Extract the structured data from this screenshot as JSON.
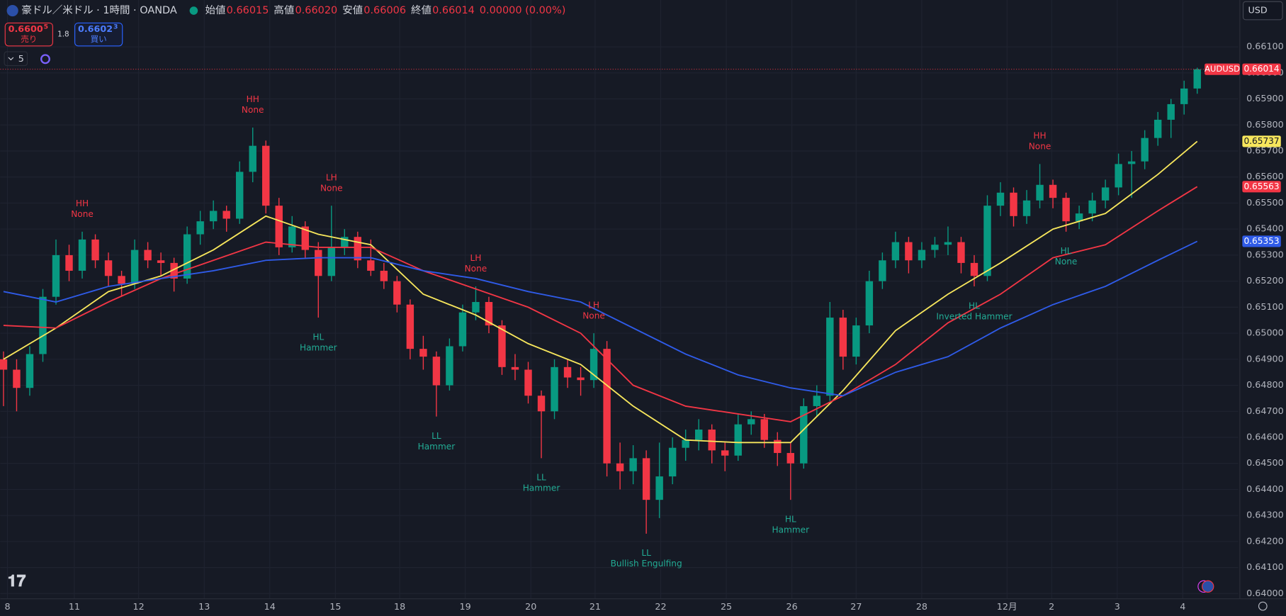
{
  "header": {
    "title": "豪ドル／米ドル · 1時間 · OANDA",
    "ohlc": [
      {
        "name": "始値",
        "text": "0.66015"
      },
      {
        "name": "高値",
        "text": "0.66020"
      },
      {
        "name": "安値",
        "text": "0.66006"
      },
      {
        "name": "終値",
        "text": "0.66014"
      }
    ],
    "change": "0.00000 (0.00%)",
    "sell": {
      "price": "0.6600",
      "pip": "5",
      "label": "売り"
    },
    "buy": {
      "price": "0.6602",
      "pip": "3",
      "label": "買い"
    },
    "spread": "1.8",
    "indicators": "5",
    "currency": "USD"
  },
  "chart_data": {
    "type": "candlestick",
    "symbol": "AUDUSD",
    "up_color": "#089981",
    "down_color": "#f23645",
    "grid": true,
    "xlim": [
      -0.25,
      94.125
    ],
    "ylim": [
      0.6398,
      0.6628
    ],
    "xticks": [
      {
        "value": 0.3,
        "label": "8"
      },
      {
        "value": 5.4,
        "label": "11"
      },
      {
        "value": 10.3,
        "label": "12"
      },
      {
        "value": 15.3,
        "label": "13"
      },
      {
        "value": 20.3,
        "label": "14"
      },
      {
        "value": 25.3,
        "label": "15"
      },
      {
        "value": 30.2,
        "label": "18"
      },
      {
        "value": 35.2,
        "label": "19"
      },
      {
        "value": 40.2,
        "label": "20"
      },
      {
        "value": 45.1,
        "label": "21"
      },
      {
        "value": 50.1,
        "label": "22"
      },
      {
        "value": 55.1,
        "label": "25"
      },
      {
        "value": 60.1,
        "label": "26"
      },
      {
        "value": 65,
        "label": "27"
      },
      {
        "value": 70,
        "label": "28"
      },
      {
        "value": 76.5,
        "label": "12月"
      },
      {
        "value": 79.9,
        "label": "2"
      },
      {
        "value": 84.9,
        "label": "3"
      },
      {
        "value": 89.9,
        "label": "4"
      }
    ],
    "yticks": [
      {
        "value": 0.64,
        "label": "0.64000"
      },
      {
        "value": 0.641,
        "label": "0.64100"
      },
      {
        "value": 0.642,
        "label": "0.64200"
      },
      {
        "value": 0.643,
        "label": "0.64300"
      },
      {
        "value": 0.644,
        "label": "0.64400"
      },
      {
        "value": 0.645,
        "label": "0.64500"
      },
      {
        "value": 0.646,
        "label": "0.64600"
      },
      {
        "value": 0.647,
        "label": "0.64700"
      },
      {
        "value": 0.648,
        "label": "0.64800"
      },
      {
        "value": 0.649,
        "label": "0.64900"
      },
      {
        "value": 0.65,
        "label": "0.65000"
      },
      {
        "value": 0.651,
        "label": "0.65100"
      },
      {
        "value": 0.652,
        "label": "0.65200"
      },
      {
        "value": 0.653,
        "label": "0.65300"
      },
      {
        "value": 0.654,
        "label": "0.65400"
      },
      {
        "value": 0.655,
        "label": "0.65500"
      },
      {
        "value": 0.656,
        "label": "0.65600"
      },
      {
        "value": 0.657,
        "label": "0.65700"
      },
      {
        "value": 0.658,
        "label": "0.65800"
      },
      {
        "value": 0.659,
        "label": "0.65900"
      },
      {
        "value": 0.66,
        "label": "0.66000"
      },
      {
        "value": 0.661,
        "label": "0.66100"
      }
    ],
    "candles": [
      [
        0.649,
        0.6493,
        0.6472,
        0.6486
      ],
      [
        0.6486,
        0.649,
        0.647,
        0.6479
      ],
      [
        0.6479,
        0.6495,
        0.6476,
        0.6492
      ],
      [
        0.6492,
        0.6517,
        0.6489,
        0.6514
      ],
      [
        0.6514,
        0.6536,
        0.6511,
        0.653
      ],
      [
        0.653,
        0.6534,
        0.652,
        0.6524
      ],
      [
        0.6524,
        0.6539,
        0.6521,
        0.6536
      ],
      [
        0.6536,
        0.6538,
        0.6525,
        0.6528
      ],
      [
        0.6528,
        0.6531,
        0.6518,
        0.6522
      ],
      [
        0.6522,
        0.6524,
        0.6514,
        0.6519
      ],
      [
        0.6519,
        0.6536,
        0.6517,
        0.6532
      ],
      [
        0.6532,
        0.6535,
        0.6525,
        0.6528
      ],
      [
        0.6528,
        0.6531,
        0.6522,
        0.6527
      ],
      [
        0.6527,
        0.6529,
        0.6516,
        0.6521
      ],
      [
        0.6521,
        0.6541,
        0.6519,
        0.6538
      ],
      [
        0.6538,
        0.6547,
        0.6534,
        0.6543
      ],
      [
        0.6543,
        0.6551,
        0.654,
        0.6547
      ],
      [
        0.6547,
        0.6549,
        0.6539,
        0.6544
      ],
      [
        0.6544,
        0.6566,
        0.6542,
        0.6562
      ],
      [
        0.6562,
        0.6579,
        0.6558,
        0.6572
      ],
      [
        0.6572,
        0.6574,
        0.6546,
        0.6549
      ],
      [
        0.6549,
        0.6552,
        0.653,
        0.6533
      ],
      [
        0.6533,
        0.6545,
        0.6531,
        0.6541
      ],
      [
        0.6541,
        0.6543,
        0.6529,
        0.6532
      ],
      [
        0.6532,
        0.6535,
        0.6506,
        0.6522
      ],
      [
        0.6522,
        0.6549,
        0.652,
        0.6533
      ],
      [
        0.6533,
        0.654,
        0.653,
        0.6537
      ],
      [
        0.6537,
        0.6539,
        0.6525,
        0.6528
      ],
      [
        0.6528,
        0.6536,
        0.6522,
        0.6524
      ],
      [
        0.6524,
        0.6527,
        0.6517,
        0.652
      ],
      [
        0.652,
        0.6522,
        0.6508,
        0.6511
      ],
      [
        0.6511,
        0.6513,
        0.649,
        0.6494
      ],
      [
        0.6494,
        0.6499,
        0.6486,
        0.6491
      ],
      [
        0.6491,
        0.6493,
        0.6468,
        0.648
      ],
      [
        0.648,
        0.6498,
        0.6478,
        0.6495
      ],
      [
        0.6495,
        0.6511,
        0.6493,
        0.6508
      ],
      [
        0.6508,
        0.6518,
        0.6505,
        0.6512
      ],
      [
        0.6512,
        0.6514,
        0.65,
        0.6503
      ],
      [
        0.6503,
        0.6505,
        0.6484,
        0.6487
      ],
      [
        0.6487,
        0.6492,
        0.6482,
        0.6486
      ],
      [
        0.6486,
        0.6489,
        0.6473,
        0.6476
      ],
      [
        0.6476,
        0.6478,
        0.6452,
        0.647
      ],
      [
        0.647,
        0.649,
        0.6467,
        0.6487
      ],
      [
        0.6487,
        0.649,
        0.6479,
        0.6483
      ],
      [
        0.6483,
        0.6487,
        0.6476,
        0.6482
      ],
      [
        0.6482,
        0.65,
        0.6479,
        0.6494
      ],
      [
        0.6494,
        0.6497,
        0.6445,
        0.645
      ],
      [
        0.645,
        0.6458,
        0.644,
        0.6447
      ],
      [
        0.6447,
        0.6457,
        0.6442,
        0.6452
      ],
      [
        0.6452,
        0.6455,
        0.6423,
        0.6436
      ],
      [
        0.6436,
        0.6458,
        0.6429,
        0.6445
      ],
      [
        0.6445,
        0.646,
        0.6442,
        0.6456
      ],
      [
        0.6456,
        0.6463,
        0.6451,
        0.6459
      ],
      [
        0.6459,
        0.6467,
        0.6455,
        0.6463
      ],
      [
        0.6463,
        0.6465,
        0.645,
        0.6455
      ],
      [
        0.6455,
        0.6458,
        0.6447,
        0.6453
      ],
      [
        0.6453,
        0.6469,
        0.6451,
        0.6465
      ],
      [
        0.6465,
        0.647,
        0.6461,
        0.6467
      ],
      [
        0.6467,
        0.6469,
        0.6456,
        0.6459
      ],
      [
        0.6459,
        0.6462,
        0.6449,
        0.6454
      ],
      [
        0.6454,
        0.6458,
        0.6436,
        0.645
      ],
      [
        0.645,
        0.6475,
        0.6448,
        0.6472
      ],
      [
        0.6472,
        0.648,
        0.6468,
        0.6476
      ],
      [
        0.6476,
        0.6512,
        0.6474,
        0.6506
      ],
      [
        0.6506,
        0.6509,
        0.6486,
        0.6491
      ],
      [
        0.6491,
        0.6506,
        0.6488,
        0.6503
      ],
      [
        0.6503,
        0.6524,
        0.65,
        0.652
      ],
      [
        0.652,
        0.6531,
        0.6517,
        0.6528
      ],
      [
        0.6528,
        0.6539,
        0.6525,
        0.6535
      ],
      [
        0.6535,
        0.6537,
        0.6523,
        0.6528
      ],
      [
        0.6528,
        0.6535,
        0.6525,
        0.6532
      ],
      [
        0.6532,
        0.6537,
        0.6529,
        0.6534
      ],
      [
        0.6534,
        0.6541,
        0.653,
        0.6535
      ],
      [
        0.6535,
        0.6537,
        0.6523,
        0.6527
      ],
      [
        0.6527,
        0.653,
        0.6518,
        0.6522
      ],
      [
        0.6522,
        0.6553,
        0.652,
        0.6549
      ],
      [
        0.6549,
        0.6558,
        0.6545,
        0.6554
      ],
      [
        0.6554,
        0.6556,
        0.6541,
        0.6545
      ],
      [
        0.6545,
        0.6555,
        0.6542,
        0.6551
      ],
      [
        0.6551,
        0.6565,
        0.6548,
        0.6557
      ],
      [
        0.6557,
        0.6559,
        0.6548,
        0.6552
      ],
      [
        0.6552,
        0.6554,
        0.6539,
        0.6543
      ],
      [
        0.6543,
        0.6549,
        0.654,
        0.6546
      ],
      [
        0.6546,
        0.6554,
        0.6543,
        0.6551
      ],
      [
        0.6551,
        0.6559,
        0.6548,
        0.6556
      ],
      [
        0.6556,
        0.6569,
        0.6553,
        0.6565
      ],
      [
        0.6565,
        0.657,
        0.6552,
        0.6566
      ],
      [
        0.6566,
        0.6578,
        0.6563,
        0.6575
      ],
      [
        0.6575,
        0.6585,
        0.6572,
        0.6582
      ],
      [
        0.6582,
        0.659,
        0.6575,
        0.6588
      ],
      [
        0.6588,
        0.6597,
        0.6584,
        0.6594
      ],
      [
        0.6594,
        0.6602,
        0.6592,
        0.66014
      ]
    ],
    "series": [
      {
        "color": "#f7e65c",
        "x": [
          0,
          4,
          8,
          12,
          16,
          20,
          24,
          28,
          32,
          36,
          40,
          44,
          48,
          52,
          56,
          60,
          64,
          68,
          72,
          76,
          80,
          84,
          88,
          91
        ],
        "values": [
          0.649,
          0.6502,
          0.6516,
          0.6522,
          0.6532,
          0.6545,
          0.6538,
          0.6534,
          0.6515,
          0.6507,
          0.6496,
          0.6488,
          0.6472,
          0.6459,
          0.6458,
          0.6458,
          0.6478,
          0.6501,
          0.6515,
          0.6527,
          0.654,
          0.6546,
          0.6561,
          0.65737
        ],
        "label_text": "#131722"
      },
      {
        "color": "#f23645",
        "x": [
          0,
          4,
          8,
          12,
          16,
          20,
          24,
          28,
          32,
          36,
          40,
          44,
          48,
          52,
          56,
          60,
          64,
          68,
          72,
          76,
          80,
          84,
          88,
          91
        ],
        "values": [
          0.6503,
          0.6502,
          0.6512,
          0.6521,
          0.6528,
          0.6535,
          0.6533,
          0.6533,
          0.6524,
          0.6517,
          0.651,
          0.65,
          0.648,
          0.6472,
          0.6469,
          0.6466,
          0.6476,
          0.6488,
          0.6504,
          0.6515,
          0.6529,
          0.6534,
          0.6547,
          0.65563
        ],
        "label_text": "#ffffff"
      },
      {
        "color": "#2f5be8",
        "x": [
          0,
          4,
          8,
          12,
          16,
          20,
          24,
          28,
          32,
          36,
          40,
          44,
          48,
          52,
          56,
          60,
          64,
          68,
          72,
          76,
          80,
          84,
          88,
          91
        ],
        "values": [
          0.6516,
          0.6512,
          0.6518,
          0.6521,
          0.6524,
          0.6528,
          0.6529,
          0.6529,
          0.6524,
          0.6521,
          0.6516,
          0.6512,
          0.6502,
          0.6492,
          0.6484,
          0.6479,
          0.6476,
          0.6485,
          0.6491,
          0.6502,
          0.6511,
          0.6518,
          0.6528,
          0.65353
        ],
        "label_text": "#ffffff"
      }
    ],
    "annotations": [
      {
        "text": "HH",
        "pattern": "None",
        "candle": 6,
        "position": "above",
        "color": "#f23645"
      },
      {
        "text": "HH",
        "pattern": "None",
        "candle": 19,
        "position": "above",
        "color": "#f23645"
      },
      {
        "text": "LH",
        "pattern": "None",
        "candle": 25,
        "position": "above",
        "color": "#f23645"
      },
      {
        "text": "HL",
        "pattern": "Hammer",
        "candle": 24,
        "position": "below",
        "color": "#22ab94"
      },
      {
        "text": "LH",
        "pattern": "None",
        "candle": 36,
        "position": "above",
        "color": "#f23645"
      },
      {
        "text": "LL",
        "pattern": "Hammer",
        "candle": 33,
        "position": "below",
        "color": "#22ab94"
      },
      {
        "text": "LH",
        "pattern": "None",
        "candle": 45,
        "position": "above",
        "color": "#f23645"
      },
      {
        "text": "LL",
        "pattern": "Hammer",
        "candle": 41,
        "position": "below",
        "color": "#22ab94"
      },
      {
        "text": "LL",
        "pattern": "Bullish Engulfing",
        "candle": 49,
        "position": "below",
        "color": "#22ab94"
      },
      {
        "text": "HL",
        "pattern": "Hammer",
        "candle": 60,
        "position": "below",
        "color": "#22ab94"
      },
      {
        "text": "HL",
        "pattern": "Inverted Hammer",
        "candle": 74,
        "position": "below",
        "color": "#22ab94"
      },
      {
        "text": "HH",
        "pattern": "None",
        "candle": 79,
        "position": "above",
        "color": "#f23645"
      },
      {
        "text": "HL",
        "pattern": "None",
        "candle": 81,
        "position": "below",
        "color": "#22ab94"
      }
    ]
  }
}
